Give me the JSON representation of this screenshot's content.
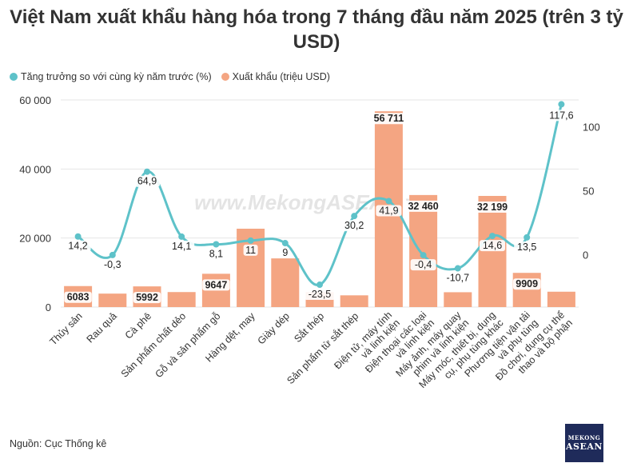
{
  "title": "Việt Nam xuất khẩu hàng hóa trong 7 tháng đầu năm 2025 (trên 3 tỷ USD)",
  "legend": {
    "growth_label": "Tăng trưởng so với cùng kỳ năm trước (%)",
    "export_label": "Xuất khẩu (triệu USD)"
  },
  "source": "Nguồn: Cục Thống kê",
  "watermark": "www.MekongASEAN.vn",
  "logo": {
    "line1": "MEKONG",
    "line2": "ASEAN"
  },
  "colors": {
    "bar": "#f4a582",
    "line": "#5ec2c9",
    "grid": "#e6e6e6"
  },
  "chart_data": {
    "type": "bar",
    "categories": [
      "Thủy sản",
      "Rau quả",
      "Cà phê",
      "Sản phẩm chất dẻo",
      "Gỗ và sản phẩm gỗ",
      "Hàng dệt, may",
      "Giày dép",
      "Sắt thép",
      "Sản phẩm từ sắt thép",
      "Điện tử, máy tính và linh kiện",
      "Điện thoại các loại và linh kiện",
      "Máy ảnh, máy quay phim và linh kiện",
      "Máy móc, thiết bị, dụng cụ, phụ tùng khác",
      "Phương tiện vận tải và phụ tùng",
      "Đồ chơi, dụng cụ thể thao và bộ phận"
    ],
    "series": [
      {
        "name": "Xuất khẩu (triệu USD)",
        "type": "bar",
        "axis": "left",
        "values": [
          6083,
          3900,
          5992,
          4350,
          9647,
          22700,
          14100,
          4350,
          3400,
          56711,
          32460,
          4300,
          32199,
          9909,
          4450
        ],
        "labels": [
          "6083",
          "",
          "5992",
          "",
          "9647",
          "",
          "",
          "",
          "",
          "56 711",
          "32 460",
          "",
          "32 199",
          "9909",
          ""
        ]
      },
      {
        "name": "Tăng trưởng so với cùng kỳ năm trước (%)",
        "type": "line",
        "axis": "right",
        "values": [
          14.2,
          -0.3,
          64.9,
          14.1,
          8.1,
          11,
          9,
          -23.5,
          30.2,
          41.9,
          -0.4,
          -10.7,
          14.6,
          13.5,
          117.6
        ],
        "labels": [
          "14,2",
          "-0,3",
          "64,9",
          "14,1",
          "8,1",
          "11",
          "9",
          "-23,5",
          "30,2",
          "41,9",
          "-0,4",
          "-10,7",
          "14,6",
          "13,5",
          "117,6"
        ]
      }
    ],
    "y_left": {
      "ticks": [
        0,
        20000,
        40000,
        60000
      ],
      "tick_labels": [
        "0",
        "20 000",
        "40 000",
        "60 000"
      ],
      "range": [
        0,
        60000
      ]
    },
    "y_right": {
      "ticks": [
        0,
        50,
        100
      ],
      "tick_labels": [
        "0",
        "50",
        "100"
      ],
      "range": [
        -41,
        121
      ]
    },
    "grid": true,
    "legend_position": "top-left"
  }
}
